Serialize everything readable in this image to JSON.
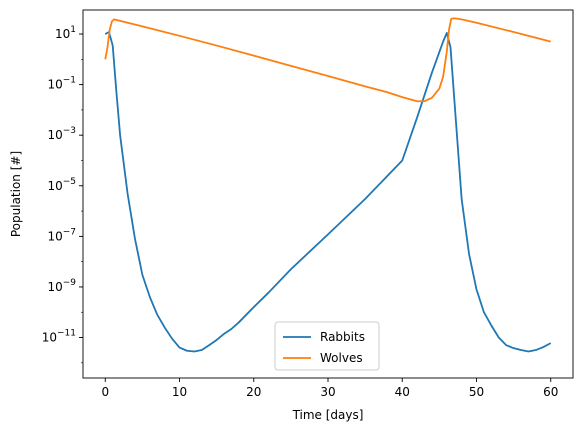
{
  "chart_data": {
    "type": "line",
    "title": "",
    "xlabel": "Time [days]",
    "ylabel": "Population [#]",
    "xlim": [
      -3,
      63
    ],
    "ylim_log10": [
      -12.6,
      1.95
    ],
    "yscale": "log",
    "grid": false,
    "legend": {
      "loc": "lower center"
    },
    "x_ticks": [
      {
        "value": 0,
        "label": "0"
      },
      {
        "value": 10,
        "label": "10"
      },
      {
        "value": 20,
        "label": "20"
      },
      {
        "value": 30,
        "label": "30"
      },
      {
        "value": 40,
        "label": "40"
      },
      {
        "value": 50,
        "label": "50"
      },
      {
        "value": 60,
        "label": "60"
      }
    ],
    "y_ticks": [
      {
        "exp": 1,
        "base": "10",
        "sup": "1"
      },
      {
        "exp": -1,
        "base": "10",
        "sup": "−1"
      },
      {
        "exp": -3,
        "base": "10",
        "sup": "−3"
      },
      {
        "exp": -5,
        "base": "10",
        "sup": "−5"
      },
      {
        "exp": -7,
        "base": "10",
        "sup": "−7"
      },
      {
        "exp": -9,
        "base": "10",
        "sup": "−9"
      },
      {
        "exp": -11,
        "base": "10",
        "sup": "−11"
      }
    ],
    "series": [
      {
        "name": "Rabbits",
        "color": "#1f77b4",
        "points": [
          [
            0,
            10
          ],
          [
            0.5,
            12
          ],
          [
            1,
            3.5
          ],
          [
            1.5,
            0.05
          ],
          [
            2,
            0.001
          ],
          [
            3,
            5e-06
          ],
          [
            4,
            8e-08
          ],
          [
            5,
            3e-09
          ],
          [
            6,
            4e-10
          ],
          [
            7,
            8e-11
          ],
          [
            8,
            2.5e-11
          ],
          [
            9,
            9e-12
          ],
          [
            10,
            4e-12
          ],
          [
            11,
            3e-12
          ],
          [
            12,
            2.8e-12
          ],
          [
            13,
            3.2e-12
          ],
          [
            14,
            5e-12
          ],
          [
            15,
            8e-12
          ],
          [
            16,
            1.4e-11
          ],
          [
            17,
            2.2e-11
          ],
          [
            18,
            4e-11
          ],
          [
            19,
            8e-11
          ],
          [
            20,
            1.6e-10
          ],
          [
            22,
            6e-10
          ],
          [
            25,
            5e-09
          ],
          [
            30,
            1.2e-07
          ],
          [
            35,
            3e-06
          ],
          [
            40,
            0.0001
          ],
          [
            42,
            0.005
          ],
          [
            44,
            0.3
          ],
          [
            45.5,
            5
          ],
          [
            46,
            11
          ],
          [
            46.5,
            3
          ],
          [
            47,
            0.03
          ],
          [
            47.5,
            0.0003
          ],
          [
            48,
            3e-06
          ],
          [
            49,
            2e-08
          ],
          [
            50,
            8e-10
          ],
          [
            51,
            1e-10
          ],
          [
            52,
            3e-11
          ],
          [
            53,
            1e-11
          ],
          [
            54,
            5e-12
          ],
          [
            55,
            3.8e-12
          ],
          [
            56,
            3.2e-12
          ],
          [
            57,
            2.8e-12
          ],
          [
            58,
            3.2e-12
          ],
          [
            59,
            4.2e-12
          ],
          [
            60,
            6e-12
          ]
        ]
      },
      {
        "name": "Wolves",
        "color": "#ff7f0e",
        "points": [
          [
            0,
            1
          ],
          [
            0.3,
            3
          ],
          [
            0.6,
            15
          ],
          [
            0.9,
            32
          ],
          [
            1.2,
            38
          ],
          [
            2,
            33
          ],
          [
            5,
            20
          ],
          [
            10,
            8.5
          ],
          [
            15,
            3.5
          ],
          [
            20,
            1.4
          ],
          [
            25,
            0.55
          ],
          [
            30,
            0.22
          ],
          [
            35,
            0.085
          ],
          [
            38,
            0.05
          ],
          [
            40,
            0.032
          ],
          [
            42,
            0.022
          ],
          [
            43,
            0.022
          ],
          [
            44,
            0.03
          ],
          [
            45,
            0.07
          ],
          [
            45.5,
            0.2
          ],
          [
            46,
            2
          ],
          [
            46.3,
            15
          ],
          [
            46.6,
            40
          ],
          [
            47,
            42
          ],
          [
            48,
            38
          ],
          [
            50,
            28
          ],
          [
            55,
            12
          ],
          [
            60,
            5
          ]
        ]
      }
    ]
  }
}
